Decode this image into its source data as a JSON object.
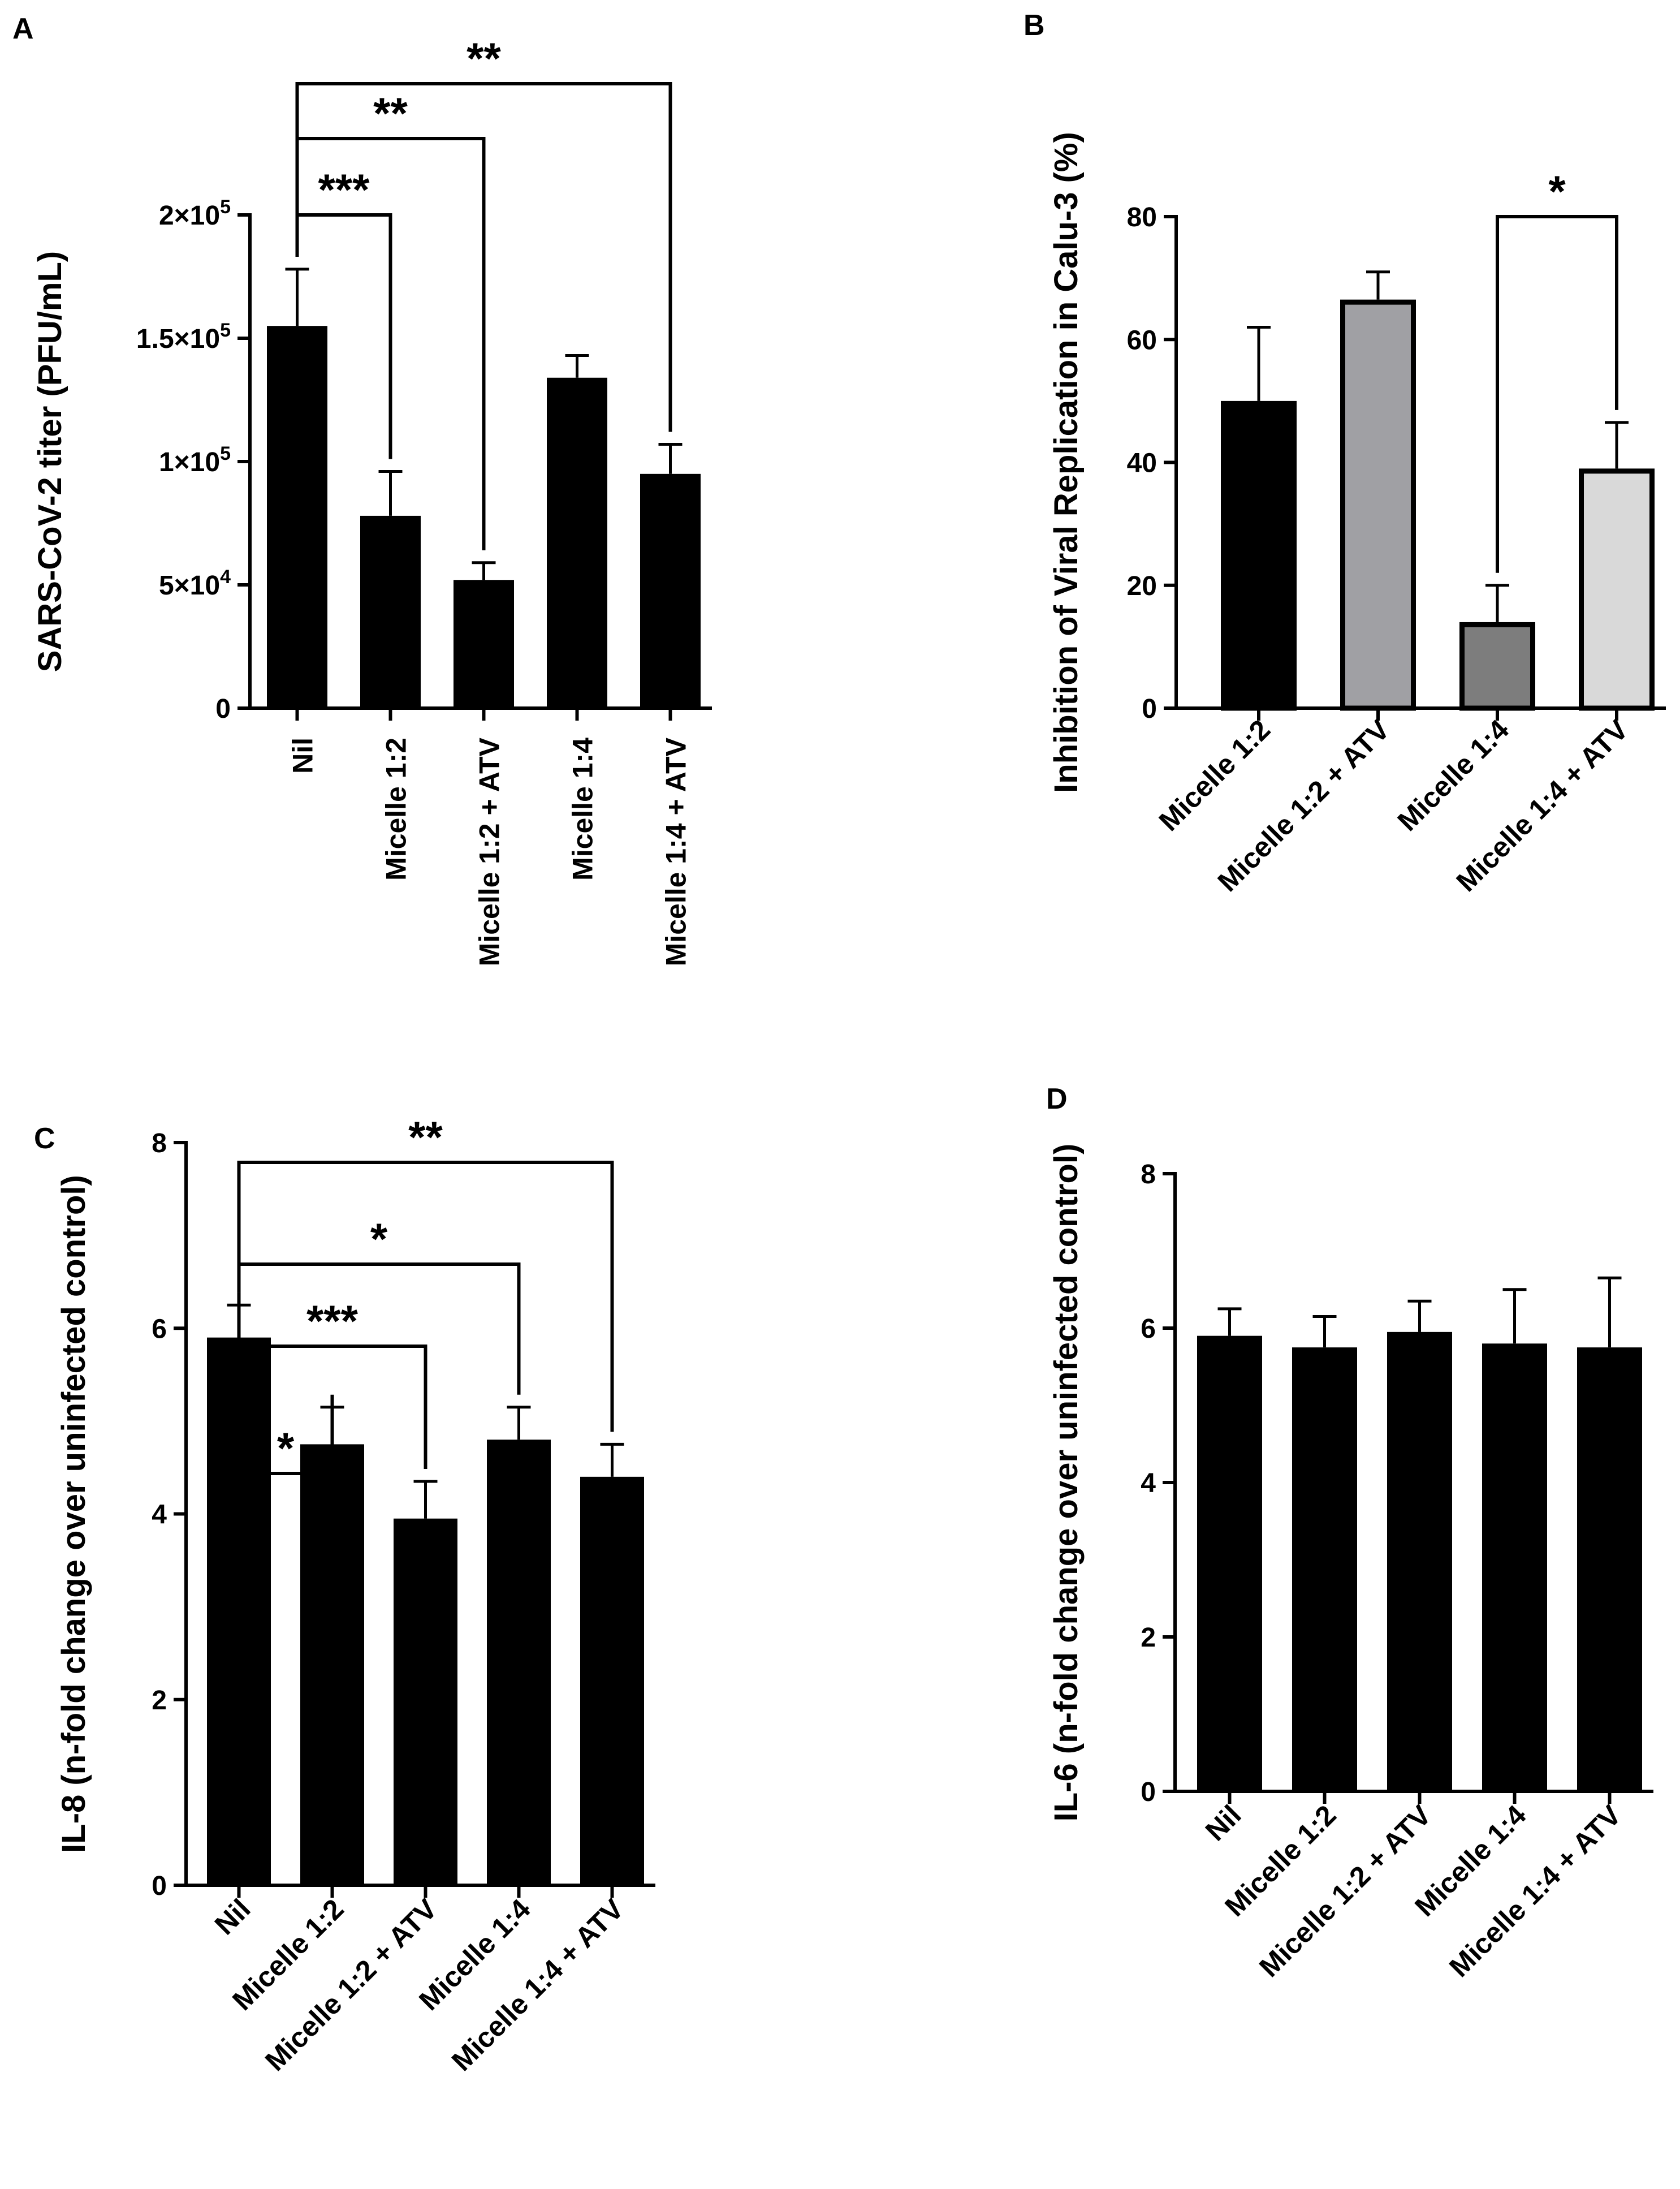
{
  "figure": {
    "panels": [
      "A",
      "B",
      "C",
      "D"
    ]
  },
  "chart_data": [
    {
      "panel": "A",
      "type": "bar",
      "title": "",
      "ylabel": "SARS-CoV-2 titer (PFU/mL)",
      "xlabel": "",
      "ylim": [
        0,
        200000
      ],
      "yticks": [
        0,
        50000,
        100000,
        150000,
        200000
      ],
      "ytick_labels": [
        {
          "mantissa": "0",
          "exp": ""
        },
        {
          "mantissa": "5×10",
          "exp": "4"
        },
        {
          "mantissa": "1×10",
          "exp": "5"
        },
        {
          "mantissa": "1.5×10",
          "exp": "5"
        },
        {
          "mantissa": "2×10",
          "exp": "5"
        }
      ],
      "categories": [
        "Nil",
        "Micelle 1:2",
        "Micelle 1:2 + ATV",
        "Micelle 1:4",
        "Micelle 1:4 + ATV"
      ],
      "values": [
        155000,
        78000,
        52000,
        134000,
        95000
      ],
      "errors": [
        23000,
        18000,
        7000,
        9000,
        12000
      ],
      "colors": [
        "#000000",
        "#000000",
        "#000000",
        "#000000",
        "#000000"
      ],
      "significance": [
        {
          "from": 0,
          "to": 1,
          "label": "***"
        },
        {
          "from": 0,
          "to": 2,
          "label": "**"
        },
        {
          "from": 0,
          "to": 4,
          "label": "**"
        }
      ]
    },
    {
      "panel": "B",
      "type": "bar",
      "title": "",
      "ylabel": "Inhibition of Viral Replication in Calu-3 (%)",
      "xlabel": "",
      "ylim": [
        0,
        80
      ],
      "yticks": [
        0,
        20,
        40,
        60,
        80
      ],
      "ytick_labels": [
        {
          "mantissa": "0",
          "exp": ""
        },
        {
          "mantissa": "20",
          "exp": ""
        },
        {
          "mantissa": "40",
          "exp": ""
        },
        {
          "mantissa": "60",
          "exp": ""
        },
        {
          "mantissa": "80",
          "exp": ""
        }
      ],
      "categories": [
        "Micelle 1:2",
        "Micelle 1:2 + ATV",
        "Micelle 1:4",
        "Micelle 1:4 + ATV"
      ],
      "values": [
        50,
        66.5,
        14,
        39
      ],
      "errors": [
        12,
        4.5,
        6,
        7.5
      ],
      "colors": [
        "#000000",
        "#a0a0a4",
        "#7d7d7d",
        "#d9d9d9"
      ],
      "significance": [
        {
          "from": 2,
          "to": 3,
          "label": "*"
        }
      ]
    },
    {
      "panel": "C",
      "type": "bar",
      "title": "",
      "ylabel": "IL-8 (n-fold change over uninfected control)",
      "xlabel": "",
      "ylim": [
        0,
        8
      ],
      "yticks": [
        0,
        2,
        4,
        6,
        8
      ],
      "ytick_labels": [
        {
          "mantissa": "0",
          "exp": ""
        },
        {
          "mantissa": "2",
          "exp": ""
        },
        {
          "mantissa": "4",
          "exp": ""
        },
        {
          "mantissa": "6",
          "exp": ""
        },
        {
          "mantissa": "8",
          "exp": ""
        }
      ],
      "categories": [
        "Nil",
        "Micelle 1:2",
        "Micelle 1:2 + ATV",
        "Micelle 1:4",
        "Micelle 1:4 + ATV"
      ],
      "values": [
        5.9,
        4.75,
        3.95,
        4.8,
        4.4
      ],
      "errors": [
        0.35,
        0.4,
        0.4,
        0.35,
        0.35
      ],
      "colors": [
        "#000000",
        "#000000",
        "#000000",
        "#000000",
        "#000000"
      ],
      "significance": [
        {
          "from": 0,
          "to": 1,
          "label": "*"
        },
        {
          "from": 0,
          "to": 2,
          "label": "***"
        },
        {
          "from": 0,
          "to": 3,
          "label": "*"
        },
        {
          "from": 0,
          "to": 4,
          "label": "**"
        }
      ]
    },
    {
      "panel": "D",
      "type": "bar",
      "title": "",
      "ylabel": "IL-6 (n-fold change over uninfected control)",
      "xlabel": "",
      "ylim": [
        0,
        8
      ],
      "yticks": [
        0,
        2,
        4,
        6,
        8
      ],
      "ytick_labels": [
        {
          "mantissa": "0",
          "exp": ""
        },
        {
          "mantissa": "2",
          "exp": ""
        },
        {
          "mantissa": "4",
          "exp": ""
        },
        {
          "mantissa": "6",
          "exp": ""
        },
        {
          "mantissa": "8",
          "exp": ""
        }
      ],
      "categories": [
        "Nil",
        "Micelle 1:2",
        "Micelle 1:2 + ATV",
        "Micelle 1:4",
        "Micelle 1:4 + ATV"
      ],
      "values": [
        5.9,
        5.75,
        5.95,
        5.8,
        5.75
      ],
      "errors": [
        0.35,
        0.4,
        0.4,
        0.7,
        0.9
      ],
      "colors": [
        "#000000",
        "#000000",
        "#000000",
        "#000000",
        "#000000"
      ],
      "significance": []
    }
  ]
}
